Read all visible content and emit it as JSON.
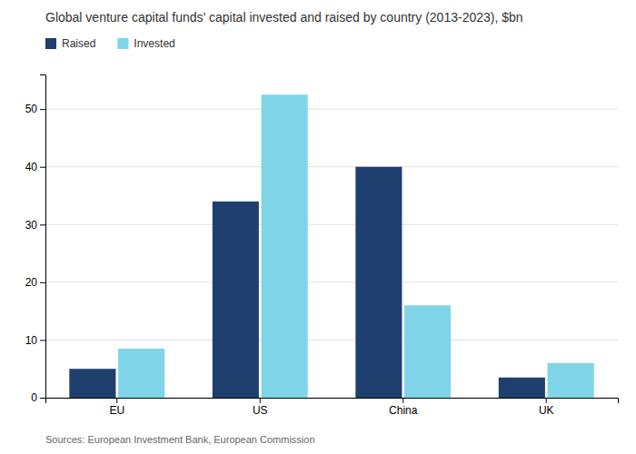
{
  "chart_data": {
    "type": "bar",
    "title": "Global venture capital funds’ capital invested and raised by country (2013-2023), $bn",
    "categories": [
      "EU",
      "US",
      "China",
      "UK"
    ],
    "series": [
      {
        "name": "Raised",
        "color": "#1f3f6e",
        "values": [
          5,
          34,
          40,
          3.5
        ]
      },
      {
        "name": "Invested",
        "color": "#7fd4e8",
        "values": [
          8.5,
          52.5,
          16,
          6
        ]
      }
    ],
    "ylim": [
      0,
      56
    ],
    "yticks": [
      0,
      10,
      20,
      30,
      40,
      50
    ],
    "grid": true,
    "legend": "upper left",
    "annotations": [
      "Sources: European Investment Bank, European Commission"
    ]
  }
}
